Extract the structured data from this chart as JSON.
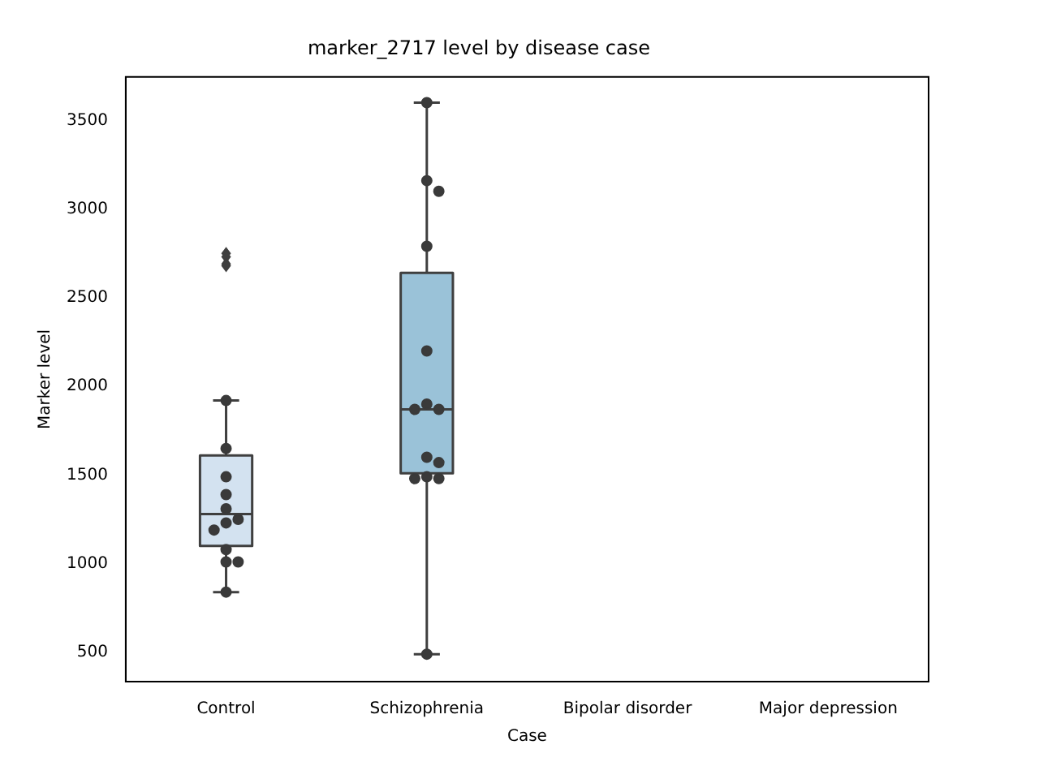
{
  "chart_data": {
    "type": "box",
    "title": "marker_2717 level by disease case",
    "xlabel": "Case",
    "ylabel": "Marker level",
    "categories": [
      "Control",
      "Schizophrenia",
      "Bipolar disorder",
      "Major depression"
    ],
    "ylim": [
      335,
      3745
    ],
    "yticks": [
      500,
      1000,
      1500,
      2000,
      2500,
      3000,
      3500
    ],
    "grid": false,
    "legend": false,
    "series": [
      {
        "colors": [
          "#d3e2f0",
          "#9ac2d8",
          null,
          null
        ],
        "boxes": [
          {
            "low": 840,
            "q1": 1100,
            "median": 1280,
            "q3": 1610,
            "high": 1920,
            "outliers": [
              2750,
              2730,
              2690,
              2680
            ]
          },
          {
            "low": 490,
            "q1": 1510,
            "median": 1870,
            "q3": 2640,
            "high": 3600
          },
          null,
          null
        ]
      },
      {
        "type": "scatter",
        "color": "#3a3a3a",
        "marker": "circle",
        "x": [
          "Control",
          "Control",
          "Control",
          "Control",
          "Control",
          "Control",
          "Control",
          "Control",
          "Control",
          "Control",
          "Control",
          "Control",
          "Schizophrenia",
          "Schizophrenia",
          "Schizophrenia",
          "Schizophrenia",
          "Schizophrenia",
          "Schizophrenia",
          "Schizophrenia",
          "Schizophrenia",
          "Schizophrenia",
          "Schizophrenia",
          "Schizophrenia",
          "Schizophrenia",
          "Schizophrenia",
          "Schizophrenia"
        ],
        "values": [
          1920,
          1650,
          1490,
          1390,
          1310,
          1250,
          1230,
          1190,
          1080,
          1010,
          1010,
          840,
          3600,
          3160,
          3100,
          2790,
          2200,
          1900,
          1870,
          1870,
          1600,
          1570,
          1490,
          1480,
          1480,
          490
        ]
      }
    ]
  }
}
